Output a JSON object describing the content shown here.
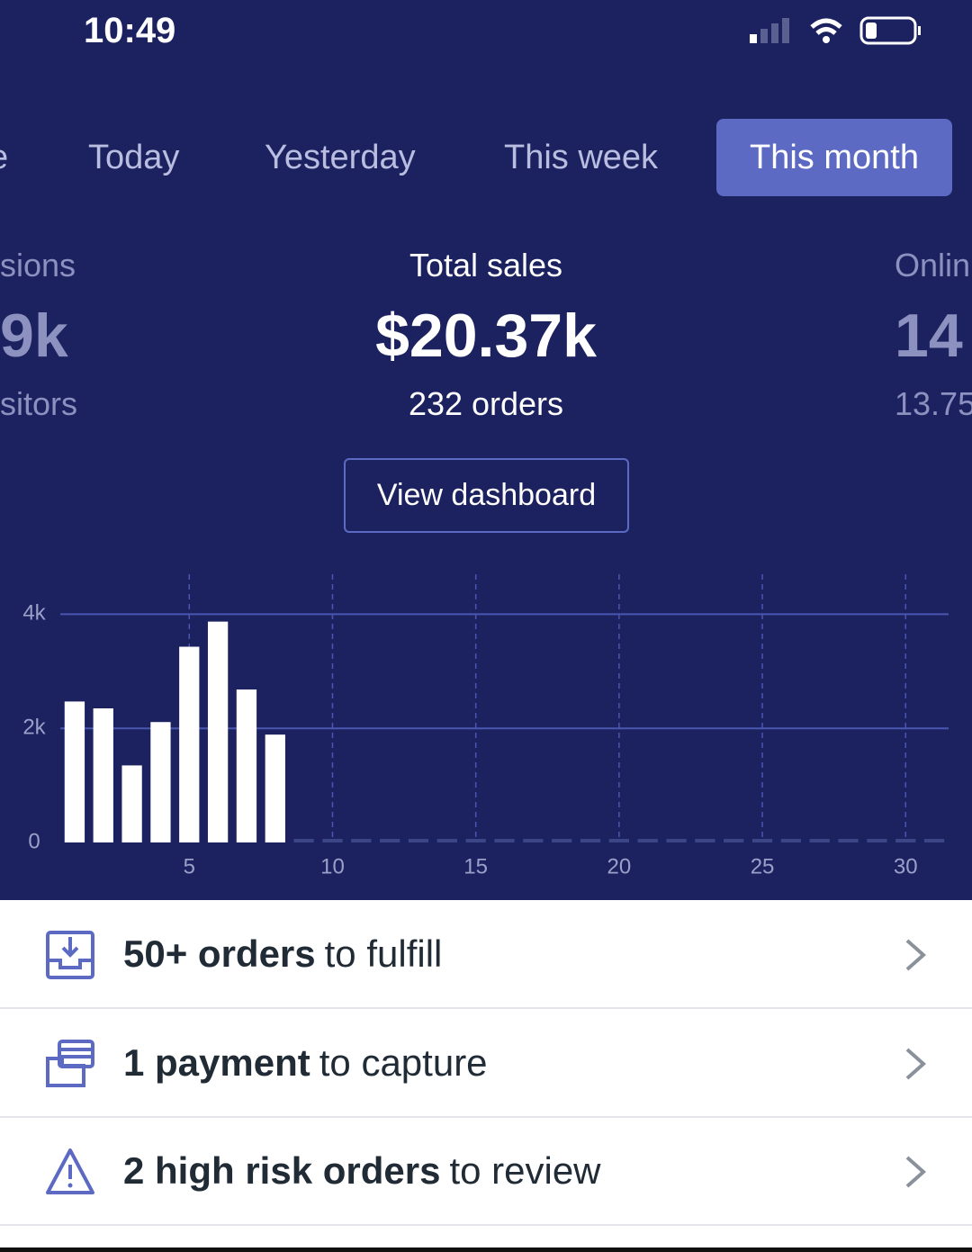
{
  "status_bar": {
    "time": "10:49"
  },
  "tabs": [
    "e",
    "Today",
    "Yesterday",
    "This week",
    "This month"
  ],
  "summaries": [
    {
      "title": "sions",
      "value": "9k",
      "sub": "sitors"
    },
    {
      "title": "Total sales",
      "value": "$20.37k",
      "sub": "232 orders"
    },
    {
      "title": "Onlin",
      "value": "14",
      "sub": "13.75"
    }
  ],
  "button": "View dashboard",
  "chart_data": {
    "type": "bar",
    "color": "#ffffff",
    "x": [
      1,
      2,
      3,
      4,
      5,
      6,
      7,
      8,
      9,
      10,
      11,
      12,
      13,
      14,
      15,
      16,
      17,
      18,
      19,
      20,
      21,
      22,
      23,
      24,
      25,
      26,
      27,
      28,
      29,
      30,
      31
    ],
    "values": [
      2470,
      2350,
      1350,
      2110,
      3430,
      3870,
      2680,
      1890,
      0,
      0,
      0,
      0,
      0,
      0,
      0,
      0,
      0,
      0,
      0,
      0,
      0,
      0,
      0,
      0,
      0,
      0,
      0,
      0,
      0,
      0,
      0
    ],
    "xlim": [
      0.5,
      31.5
    ],
    "xticks": [
      5,
      10,
      15,
      20,
      25,
      30
    ],
    "ylim": [
      0,
      4700
    ],
    "yticks": [
      0,
      {
        "value": 2000,
        "label": "2k"
      },
      {
        "value": 4000,
        "label": "4k"
      }
    ],
    "grid": true
  },
  "tasks": [
    {
      "bold": "50+ orders",
      "text": "to fulfill"
    },
    {
      "bold": "1 payment",
      "text": "to capture"
    },
    {
      "bold": "2 high risk orders",
      "text": "to review"
    }
  ]
}
